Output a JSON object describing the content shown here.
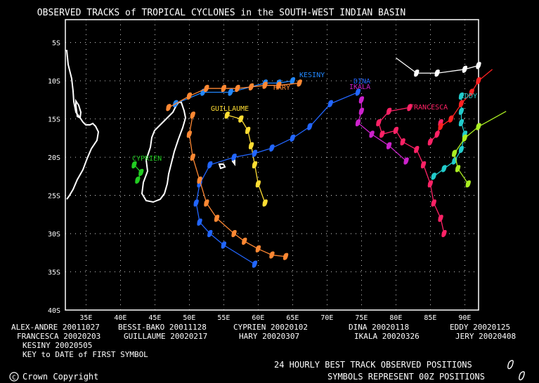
{
  "title": "OBSERVED TRACKS of TROPICAL CYCLONES in the SOUTH-WEST INDIAN BASIN",
  "axes": {
    "lat_labels": [
      "5S",
      "10S",
      "15S",
      "20S",
      "25S",
      "30S",
      "35S",
      "40S"
    ],
    "lon_labels": [
      "35E",
      "40E",
      "45E",
      "50E",
      "55E",
      "60E",
      "65E",
      "70E",
      "75E",
      "80E",
      "85E",
      "90E"
    ]
  },
  "legend_rows": [
    [
      "ALEX-ANDRE 20011027",
      "BESSI-BAKO 20011128",
      "CYPRIEN 20020102",
      "DINA 20020118",
      "EDDY 20020125"
    ],
    [
      "FRANCESCA 20020203",
      "GUILLAUME 20020217",
      "HARY 20020307",
      "IKALA 20020326",
      "JERY 20020408"
    ],
    [
      "KESINY 20020505",
      "",
      "",
      "",
      ""
    ]
  ],
  "key_note": "KEY to DATE of FIRST SYMBOL",
  "footer_right_1": "24 HOURLY BEST TRACK OBSERVED POSITIONS",
  "footer_right_2": "SYMBOLS REPRESENT 00Z POSITIONS",
  "copyright": "Crown Copyright",
  "map_data": {
    "lon_range": [
      32,
      92
    ],
    "lat_range": [
      -40,
      -2
    ],
    "tracks": [
      {
        "name": "KESINY",
        "color": "#2288ff",
        "points": [
          [
            48,
            -13
          ],
          [
            52,
            -11.5
          ],
          [
            56,
            -11.5
          ],
          [
            61,
            -10.3
          ],
          [
            63,
            -10.3
          ],
          [
            65,
            -10
          ]
        ]
      },
      {
        "name": "HARY",
        "color": "#ff8833",
        "points": [
          [
            47,
            -13.5
          ],
          [
            50,
            -12
          ],
          [
            52.5,
            -11
          ],
          [
            55,
            -11
          ],
          [
            57,
            -11
          ],
          [
            59,
            -10.8
          ],
          [
            61,
            -10.6
          ],
          [
            63,
            -10.6
          ],
          [
            66,
            -10.3
          ]
        ]
      },
      {
        "name": "GUILLAUME",
        "color": "#ffdd33",
        "points": [
          [
            55.5,
            -14.5
          ],
          [
            57.5,
            -15
          ],
          [
            58.5,
            -16.5
          ],
          [
            59,
            -18.5
          ],
          [
            59.5,
            -21
          ],
          [
            60,
            -23.5
          ],
          [
            61,
            -26
          ]
        ]
      },
      {
        "name": "CYPRIEN",
        "color": "#22cc22",
        "points": [
          [
            42,
            -21
          ],
          [
            43,
            -22
          ],
          [
            42.5,
            -23
          ]
        ]
      },
      {
        "name": "DINA",
        "color": "#2266ff",
        "points": [
          [
            74.5,
            -11.5
          ],
          [
            70.5,
            -13
          ],
          [
            67.5,
            -16
          ],
          [
            65,
            -17.5
          ],
          [
            62,
            -18.8
          ],
          [
            59.5,
            -19.5
          ],
          [
            56.5,
            -20
          ],
          [
            53,
            -21
          ],
          [
            51.5,
            -23.5
          ],
          [
            51,
            -26
          ],
          [
            51.5,
            -28.5
          ],
          [
            53,
            -30
          ],
          [
            55,
            -31.5
          ],
          [
            59.5,
            -34
          ]
        ]
      },
      {
        "name": "HARY-SOUTH",
        "color": "#ff8833",
        "points": [
          [
            50.5,
            -14.5
          ],
          [
            50,
            -17
          ],
          [
            50.5,
            -20
          ],
          [
            51.5,
            -23
          ],
          [
            52.5,
            -26
          ],
          [
            54,
            -28
          ],
          [
            56.5,
            -30
          ],
          [
            58,
            -31
          ],
          [
            60,
            -32
          ],
          [
            62,
            -32.8
          ],
          [
            64,
            -33
          ]
        ]
      },
      {
        "name": "IKALA",
        "color": "#cc22cc",
        "points": [
          [
            75,
            -12.5
          ],
          [
            75,
            -14
          ],
          [
            74.5,
            -15.5
          ],
          [
            76.5,
            -17
          ],
          [
            79,
            -18.5
          ],
          [
            81.5,
            -20.5
          ]
        ]
      },
      {
        "name": "FRANCESCA",
        "color": "#ff2266",
        "points": [
          [
            82,
            -13.5
          ],
          [
            79,
            -14
          ],
          [
            77.5,
            -15.5
          ],
          [
            78,
            -17
          ],
          [
            80,
            -16.5
          ],
          [
            81,
            -18
          ],
          [
            83,
            -19
          ],
          [
            84,
            -21
          ],
          [
            85,
            -23.5
          ],
          [
            85.5,
            -26
          ],
          [
            86.5,
            -28
          ],
          [
            87,
            -30
          ]
        ]
      },
      {
        "name": "FRANCESCA-2",
        "color": "#ff2266",
        "points": [
          [
            86.5,
            -15.5
          ],
          [
            86,
            -17
          ],
          [
            85,
            -18
          ]
        ]
      },
      {
        "name": "EDDY",
        "color": "#22cccc",
        "points": [
          [
            89.5,
            -12
          ],
          [
            89.5,
            -14
          ],
          [
            89.5,
            -15.5
          ],
          [
            90,
            -17
          ],
          [
            89.5,
            -19
          ],
          [
            88.5,
            -20.5
          ],
          [
            87,
            -21.5
          ],
          [
            85.5,
            -22.5
          ]
        ]
      },
      {
        "name": "JERY",
        "color": "#aaee22",
        "points": [
          [
            96,
            -14
          ],
          [
            92,
            -16
          ],
          [
            90,
            -17.5
          ],
          [
            88.5,
            -19.5
          ],
          [
            89,
            -21.5
          ],
          [
            90.5,
            -23.5
          ]
        ]
      },
      {
        "name": "ALEX-ANDRE",
        "color": "#ff2222",
        "points": [
          [
            94,
            -8.5
          ],
          [
            92,
            -10
          ],
          [
            91,
            -11.5
          ],
          [
            89.5,
            -13
          ],
          [
            88,
            -15
          ],
          [
            86.5,
            -16
          ]
        ]
      },
      {
        "name": "BESSI-BAKO",
        "color": "#ffffff",
        "points": [
          [
            80,
            -7
          ],
          [
            83,
            -9
          ],
          [
            86,
            -9
          ],
          [
            90,
            -8.5
          ],
          [
            92,
            -8
          ]
        ]
      }
    ]
  }
}
